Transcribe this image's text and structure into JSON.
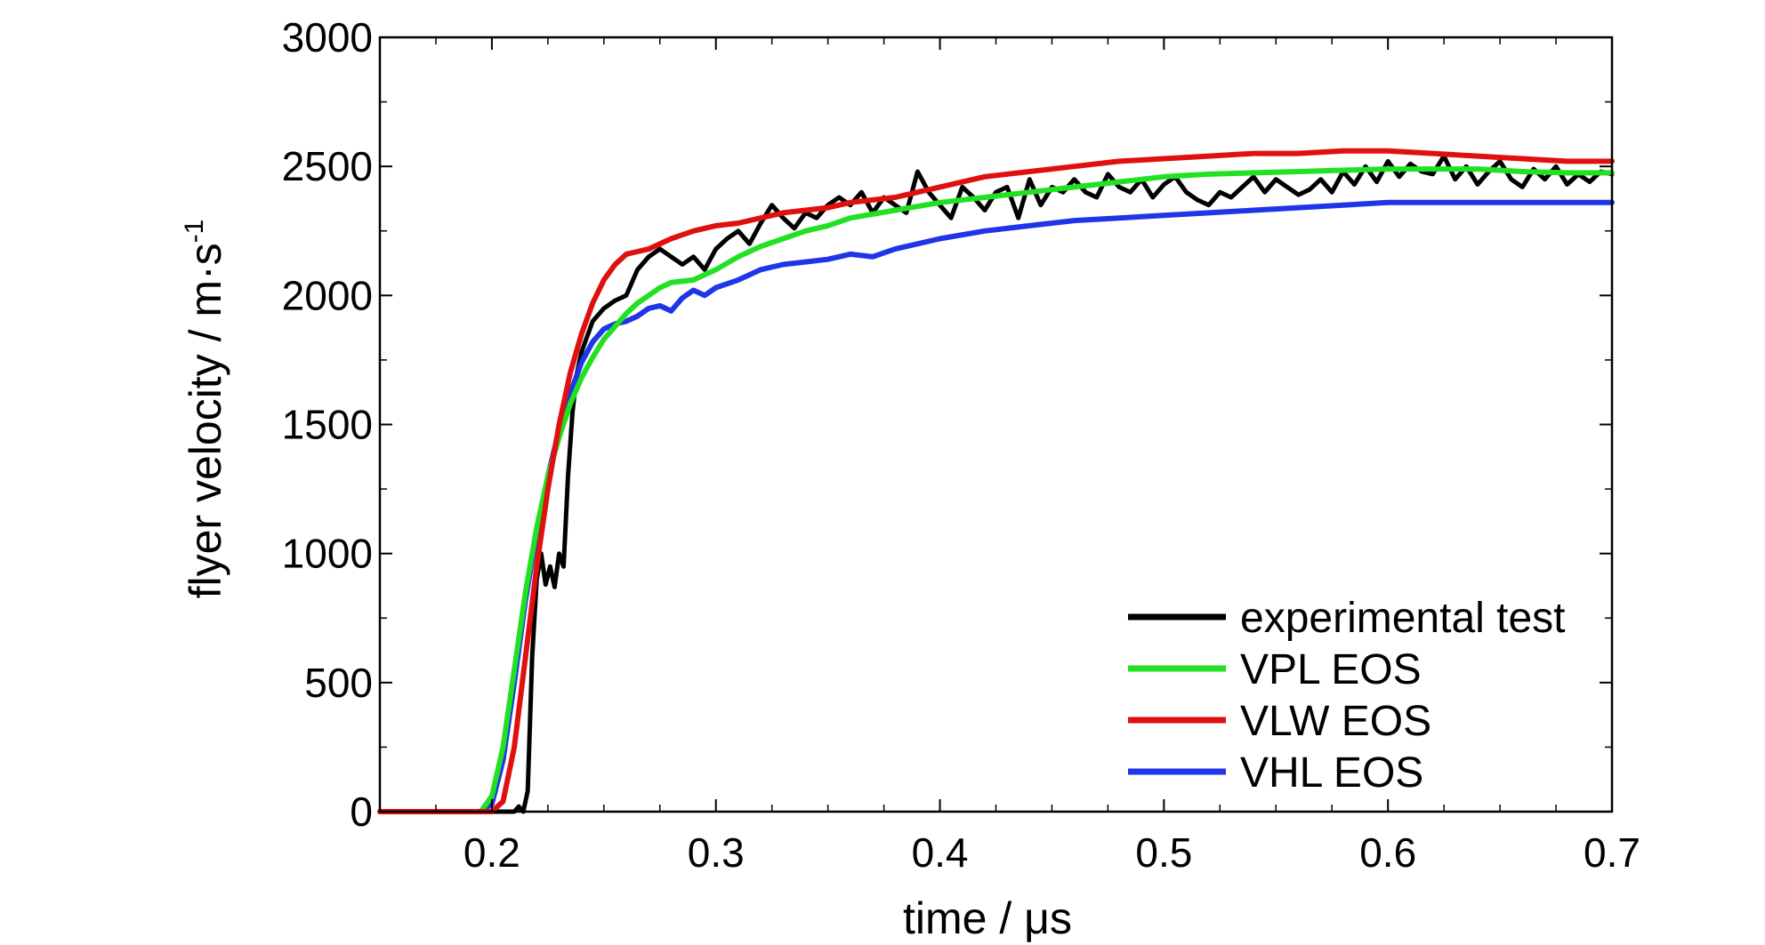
{
  "chart_data": {
    "type": "line",
    "xlabel": "time / μs",
    "ylabel": "flyer velocity / m·s",
    "ylabel_superscript": "-1",
    "xlim": [
      0.15,
      0.7
    ],
    "ylim": [
      0,
      3000
    ],
    "x_ticks": [
      "0.2",
      "0.3",
      "0.4",
      "0.5",
      "0.6",
      "0.7"
    ],
    "y_ticks": [
      "0",
      "500",
      "1000",
      "1500",
      "2000",
      "2500",
      "3000"
    ],
    "grid": false,
    "legend_position": "bottom-right",
    "series": [
      {
        "name": "experimental test",
        "color": "#000000",
        "x": [
          0.15,
          0.2,
          0.21,
          0.212,
          0.214,
          0.216,
          0.218,
          0.22,
          0.222,
          0.224,
          0.226,
          0.228,
          0.23,
          0.232,
          0.234,
          0.236,
          0.238,
          0.24,
          0.245,
          0.25,
          0.255,
          0.26,
          0.265,
          0.27,
          0.275,
          0.28,
          0.285,
          0.29,
          0.295,
          0.3,
          0.305,
          0.31,
          0.315,
          0.32,
          0.325,
          0.33,
          0.335,
          0.34,
          0.345,
          0.35,
          0.355,
          0.36,
          0.365,
          0.37,
          0.375,
          0.38,
          0.385,
          0.39,
          0.395,
          0.4,
          0.405,
          0.41,
          0.415,
          0.42,
          0.425,
          0.43,
          0.435,
          0.44,
          0.445,
          0.45,
          0.455,
          0.46,
          0.465,
          0.47,
          0.475,
          0.48,
          0.485,
          0.49,
          0.495,
          0.5,
          0.505,
          0.51,
          0.515,
          0.52,
          0.525,
          0.53,
          0.535,
          0.54,
          0.545,
          0.55,
          0.555,
          0.56,
          0.565,
          0.57,
          0.575,
          0.58,
          0.585,
          0.59,
          0.595,
          0.6,
          0.605,
          0.61,
          0.615,
          0.62,
          0.625,
          0.63,
          0.635,
          0.64,
          0.645,
          0.65,
          0.655,
          0.66,
          0.665,
          0.67,
          0.675,
          0.68,
          0.685,
          0.69,
          0.695,
          0.7
        ],
        "values": [
          0,
          0,
          0,
          20,
          0,
          80,
          600,
          900,
          1000,
          880,
          950,
          870,
          1000,
          950,
          1300,
          1550,
          1700,
          1780,
          1900,
          1950,
          1980,
          2000,
          2100,
          2150,
          2180,
          2150,
          2120,
          2150,
          2100,
          2180,
          2220,
          2250,
          2200,
          2280,
          2350,
          2300,
          2260,
          2320,
          2300,
          2350,
          2380,
          2350,
          2400,
          2320,
          2380,
          2350,
          2320,
          2480,
          2400,
          2350,
          2300,
          2420,
          2380,
          2330,
          2400,
          2420,
          2300,
          2450,
          2350,
          2420,
          2400,
          2450,
          2400,
          2380,
          2470,
          2420,
          2400,
          2450,
          2380,
          2430,
          2460,
          2400,
          2370,
          2350,
          2400,
          2380,
          2420,
          2460,
          2400,
          2450,
          2420,
          2390,
          2410,
          2450,
          2400,
          2480,
          2430,
          2500,
          2440,
          2520,
          2460,
          2510,
          2480,
          2470,
          2540,
          2450,
          2500,
          2430,
          2480,
          2520,
          2450,
          2420,
          2490,
          2450,
          2500,
          2430,
          2470,
          2440,
          2480,
          2470
        ]
      },
      {
        "name": "VPL EOS",
        "color": "#22e022",
        "x": [
          0.15,
          0.195,
          0.2,
          0.205,
          0.21,
          0.215,
          0.22,
          0.225,
          0.23,
          0.235,
          0.24,
          0.245,
          0.25,
          0.255,
          0.26,
          0.265,
          0.27,
          0.275,
          0.28,
          0.29,
          0.3,
          0.31,
          0.32,
          0.33,
          0.34,
          0.35,
          0.36,
          0.38,
          0.4,
          0.42,
          0.44,
          0.46,
          0.48,
          0.5,
          0.52,
          0.54,
          0.56,
          0.58,
          0.6,
          0.62,
          0.64,
          0.66,
          0.68,
          0.7
        ],
        "values": [
          0,
          0,
          60,
          250,
          550,
          850,
          1100,
          1300,
          1450,
          1580,
          1680,
          1760,
          1830,
          1880,
          1930,
          1970,
          2000,
          2030,
          2050,
          2060,
          2100,
          2150,
          2190,
          2220,
          2250,
          2270,
          2300,
          2330,
          2360,
          2380,
          2400,
          2420,
          2440,
          2460,
          2470,
          2475,
          2480,
          2485,
          2490,
          2490,
          2490,
          2480,
          2475,
          2475
        ]
      },
      {
        "name": "VLW EOS",
        "color": "#e01010",
        "x": [
          0.15,
          0.2,
          0.205,
          0.21,
          0.215,
          0.22,
          0.225,
          0.23,
          0.235,
          0.24,
          0.245,
          0.25,
          0.255,
          0.26,
          0.265,
          0.27,
          0.28,
          0.29,
          0.3,
          0.31,
          0.32,
          0.33,
          0.34,
          0.35,
          0.36,
          0.38,
          0.4,
          0.42,
          0.44,
          0.46,
          0.48,
          0.5,
          0.52,
          0.54,
          0.56,
          0.58,
          0.6,
          0.62,
          0.64,
          0.66,
          0.68,
          0.7
        ],
        "values": [
          0,
          0,
          40,
          250,
          600,
          950,
          1250,
          1500,
          1700,
          1850,
          1970,
          2060,
          2120,
          2160,
          2170,
          2180,
          2220,
          2250,
          2270,
          2280,
          2300,
          2320,
          2330,
          2340,
          2360,
          2380,
          2420,
          2460,
          2480,
          2500,
          2520,
          2530,
          2540,
          2550,
          2550,
          2560,
          2560,
          2550,
          2540,
          2530,
          2520,
          2520
        ]
      },
      {
        "name": "VHL EOS",
        "color": "#1f35e8",
        "x": [
          0.15,
          0.195,
          0.2,
          0.205,
          0.21,
          0.215,
          0.22,
          0.225,
          0.23,
          0.235,
          0.24,
          0.245,
          0.25,
          0.255,
          0.26,
          0.265,
          0.27,
          0.275,
          0.28,
          0.285,
          0.29,
          0.295,
          0.3,
          0.31,
          0.32,
          0.33,
          0.34,
          0.35,
          0.36,
          0.37,
          0.38,
          0.4,
          0.42,
          0.44,
          0.46,
          0.48,
          0.5,
          0.52,
          0.54,
          0.56,
          0.58,
          0.6,
          0.62,
          0.64,
          0.66,
          0.68,
          0.7
        ],
        "values": [
          0,
          0,
          30,
          200,
          500,
          820,
          1080,
          1300,
          1480,
          1620,
          1740,
          1820,
          1870,
          1890,
          1900,
          1920,
          1950,
          1960,
          1940,
          1990,
          2020,
          2000,
          2030,
          2060,
          2100,
          2120,
          2130,
          2140,
          2160,
          2150,
          2180,
          2220,
          2250,
          2270,
          2290,
          2300,
          2310,
          2320,
          2330,
          2340,
          2350,
          2360,
          2360,
          2360,
          2360,
          2360,
          2360
        ]
      }
    ]
  }
}
